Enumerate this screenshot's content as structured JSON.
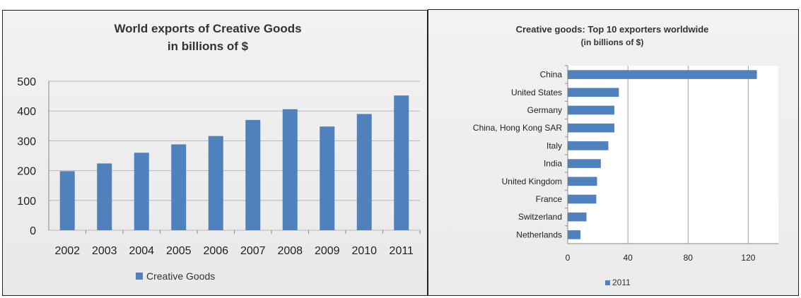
{
  "chart_data": [
    {
      "type": "bar",
      "title": "World exports of Creative Goods",
      "subtitle": "in billions of $",
      "categories": [
        "2002",
        "2003",
        "2004",
        "2005",
        "2006",
        "2007",
        "2008",
        "2009",
        "2010",
        "2011"
      ],
      "series": [
        {
          "name": "Creative Goods",
          "values": [
            198,
            224,
            260,
            288,
            316,
            370,
            406,
            348,
            390,
            452
          ]
        }
      ],
      "ylim": [
        0,
        500
      ],
      "yticks": [
        0,
        100,
        200,
        300,
        400,
        500
      ],
      "grid": true,
      "legend": "bottom",
      "color": "#4f81bd"
    },
    {
      "type": "bar",
      "orientation": "horizontal",
      "title": "Creative goods: Top 10 exporters worldwide",
      "subtitle": "(in billions of $)",
      "categories": [
        "China",
        "United States",
        "Germany",
        "China, Hong Kong SAR",
        "Italy",
        "India",
        "United Kingdom",
        "France",
        "Switzerland",
        "Netherlands"
      ],
      "series": [
        {
          "name": "2011",
          "values": [
            125.7,
            34.0,
            31.0,
            31.0,
            27.0,
            22.0,
            19.5,
            19.0,
            12.5,
            8.5
          ]
        }
      ],
      "xlim": [
        0,
        140
      ],
      "xticks": [
        0,
        40,
        80,
        120
      ],
      "grid": true,
      "legend": "bottom",
      "color": "#4f81bd"
    }
  ]
}
